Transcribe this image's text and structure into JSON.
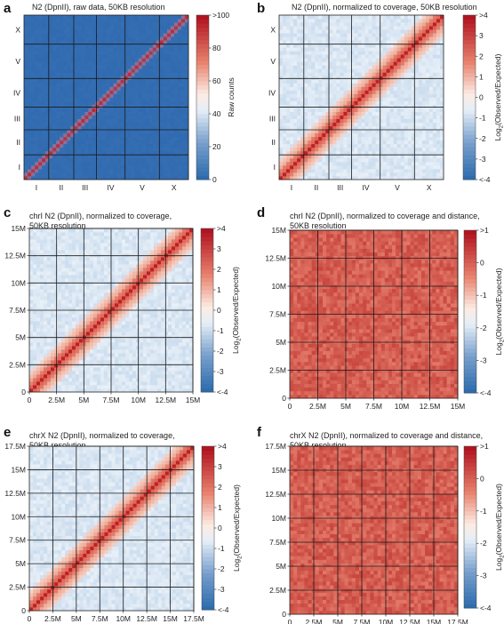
{
  "figure": {
    "panels": [
      {
        "letter": "a",
        "title_lines": [
          "N2 (DpnII), raw data, 50KB resolution"
        ],
        "map_style": "raw",
        "colorbar_label": "Raw counts",
        "colorbar_ticks": [
          "0",
          "20",
          "40",
          "60",
          "80",
          ">100"
        ]
      },
      {
        "letter": "b",
        "title_lines": [
          "N2 (DpnII), normalized to coverage, 50KB resolution"
        ],
        "map_style": "norm",
        "colorbar_label_main": "Log",
        "colorbar_label_sub": "2",
        "colorbar_label_rest": "(Observed/Expected)",
        "colorbar_ticks": [
          "<-4",
          "-3",
          "-2",
          "-1",
          "0",
          "1",
          "2",
          "3",
          ">4"
        ]
      },
      {
        "letter": "c",
        "title_lines": [
          "chrI N2 (DpnII), normalized to coverage,",
          "50KB resolution"
        ],
        "map_style": "norm",
        "colorbar_label_main": "Log",
        "colorbar_label_sub": "2",
        "colorbar_label_rest": "(Observed/Expected)",
        "colorbar_ticks": [
          "<-4",
          "-3",
          "-2",
          "-1",
          "0",
          "1",
          "2",
          "3",
          ">4"
        ]
      },
      {
        "letter": "d",
        "title_lines": [
          "chrI N2 (DpnII), normalized to coverage and distance,",
          "50KB resolution"
        ],
        "map_style": "dist",
        "colorbar_label_main": "Log",
        "colorbar_label_sub": "2",
        "colorbar_label_rest": "(Observed/Expected)",
        "colorbar_ticks": [
          "<-4",
          "-3",
          "-2",
          "-1",
          "0",
          ">1"
        ]
      },
      {
        "letter": "e",
        "title_lines": [
          "chrX N2 (DpnII), normalized to coverage,",
          "50KB resolution"
        ],
        "map_style": "norm",
        "colorbar_label_main": "Log",
        "colorbar_label_sub": "2",
        "colorbar_label_rest": "(Observed/Expected)",
        "colorbar_ticks": [
          "<-4",
          "-3",
          "-2",
          "-1",
          "0",
          "1",
          "2",
          "3",
          ">4"
        ]
      },
      {
        "letter": "f",
        "title_lines": [
          "chrX N2 (DpnII), normalized to coverage and distance,",
          "50KB resolution"
        ],
        "map_style": "dist",
        "colorbar_label_main": "Log",
        "colorbar_label_sub": "2",
        "colorbar_label_rest": "(Observed/Expected)",
        "colorbar_ticks": [
          "<-4",
          "-3",
          "-2",
          "-1",
          "0",
          ">1"
        ]
      }
    ]
  },
  "chart_data": [
    {
      "panel": "a",
      "type": "heatmap",
      "x_tick_labels": [
        "I",
        "II",
        "III",
        "IV",
        "V",
        "X"
      ],
      "y_tick_labels": [
        "I",
        "II",
        "III",
        "IV",
        "V",
        "X"
      ],
      "chromosome_boundaries": [
        0,
        15.07,
        30.35,
        44.13,
        61.63,
        82.55,
        100.27
      ],
      "colorbar": {
        "label": "Raw counts",
        "min": 0,
        "max": 100,
        "ticks": [
          "0",
          "20",
          "40",
          "60",
          "80",
          ">100"
        ]
      }
    },
    {
      "panel": "b",
      "type": "heatmap",
      "x_tick_labels": [
        "I",
        "II",
        "III",
        "IV",
        "V",
        "X"
      ],
      "y_tick_labels": [
        "I",
        "II",
        "III",
        "IV",
        "V",
        "X"
      ],
      "chromosome_boundaries": [
        0,
        15.07,
        30.35,
        44.13,
        61.63,
        82.55,
        100.27
      ],
      "colorbar": {
        "label": "Log2(Observed/Expected)",
        "min": -4,
        "max": 4,
        "ticks": [
          "<-4",
          "-3",
          "-2",
          "-1",
          "0",
          "1",
          "2",
          "3",
          ">4"
        ]
      }
    },
    {
      "panel": "c",
      "type": "heatmap",
      "x_tick_labels": [
        "0",
        "2.5M",
        "5M",
        "7.5M",
        "10M",
        "12.5M",
        "15M"
      ],
      "y_tick_labels": [
        "0",
        "2.5M",
        "5M",
        "7.5M",
        "10M",
        "12.5M",
        "15M"
      ],
      "axis_range": [
        0,
        15000000
      ],
      "colorbar": {
        "label": "Log2(Observed/Expected)",
        "min": -4,
        "max": 4,
        "ticks": [
          "<-4",
          "-3",
          "-2",
          "-1",
          "0",
          "1",
          "2",
          "3",
          ">4"
        ]
      }
    },
    {
      "panel": "d",
      "type": "heatmap",
      "x_tick_labels": [
        "0",
        "2.5M",
        "5M",
        "7.5M",
        "10M",
        "12.5M",
        "15M"
      ],
      "y_tick_labels": [
        "0",
        "2.5M",
        "5M",
        "7.5M",
        "10M",
        "12.5M",
        "15M"
      ],
      "axis_range": [
        0,
        15000000
      ],
      "colorbar": {
        "label": "Log2(Observed/Expected)",
        "min": -4,
        "max": 1,
        "ticks": [
          "<-4",
          "-3",
          "-2",
          "-1",
          "0",
          ">1"
        ]
      }
    },
    {
      "panel": "e",
      "type": "heatmap",
      "x_tick_labels": [
        "0",
        "2.5M",
        "5M",
        "7.5M",
        "10M",
        "12.5M",
        "15M",
        "17.5M"
      ],
      "y_tick_labels": [
        "0",
        "2.5M",
        "5M",
        "7.5M",
        "10M",
        "12.5M",
        "15M",
        "17.5M"
      ],
      "axis_range": [
        0,
        17500000
      ],
      "colorbar": {
        "label": "Log2(Observed/Expected)",
        "min": -4,
        "max": 4,
        "ticks": [
          "<-4",
          "-3",
          "-2",
          "-1",
          "0",
          "1",
          "2",
          "3",
          ">4"
        ]
      }
    },
    {
      "panel": "f",
      "type": "heatmap",
      "x_tick_labels": [
        "0",
        "2.5M",
        "5M",
        "7.5M",
        "10M",
        "12.5M",
        "15M",
        "17.5M"
      ],
      "y_tick_labels": [
        "0",
        "2.5M",
        "5M",
        "7.5M",
        "10M",
        "12.5M",
        "15M",
        "17.5M"
      ],
      "axis_range": [
        0,
        17500000
      ],
      "colorbar": {
        "label": "Log2(Observed/Expected)",
        "min": -4,
        "max": 1,
        "ticks": [
          "<-4",
          "-3",
          "-2",
          "-1",
          "0",
          ">1"
        ]
      }
    }
  ]
}
